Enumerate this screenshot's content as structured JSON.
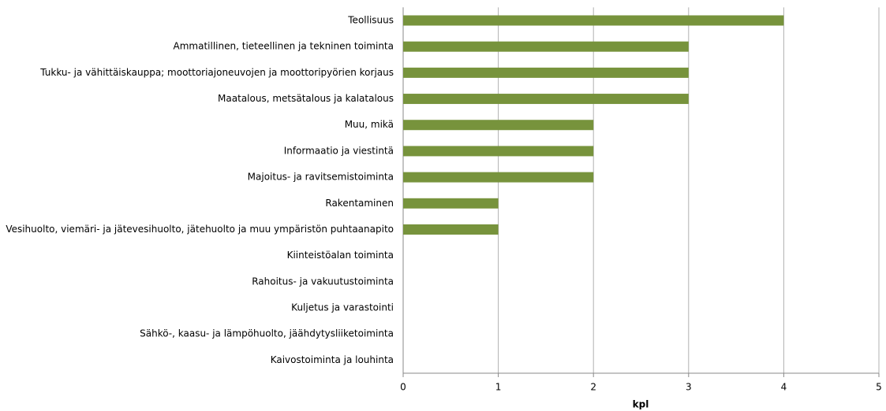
{
  "chart_data": {
    "type": "barh",
    "categories": [
      "Teollisuus",
      "Ammatillinen, tieteellinen ja tekninen toiminta",
      "Tukku- ja vähittäiskauppa; moottoriajoneuvojen ja moottoripyörien korjaus",
      "Maatalous, metsätalous ja kalatalous",
      "Muu, mikä",
      "Informaatio ja viestintä",
      "Majoitus- ja ravitsemistoiminta",
      "Rakentaminen",
      "Vesihuolto, viemäri- ja jätevesihuolto, jätehuolto ja muu ympäristön puhtaanapito",
      "Kiinteistöalan toiminta",
      "Rahoitus- ja vakuutustoiminta",
      "Kuljetus ja varastointi",
      "Sähkö-, kaasu- ja lämpöhuolto, jäähdytysliiketoiminta",
      "Kaivostoiminta ja louhinta"
    ],
    "values": [
      4,
      3,
      3,
      3,
      2,
      2,
      2,
      1,
      1,
      0,
      0,
      0,
      0,
      0
    ],
    "color": "#77933c",
    "xlabel": "kpl",
    "xlim": [
      0,
      5
    ],
    "xticks": [
      0,
      1,
      2,
      3,
      4,
      5
    ],
    "grid": true
  }
}
